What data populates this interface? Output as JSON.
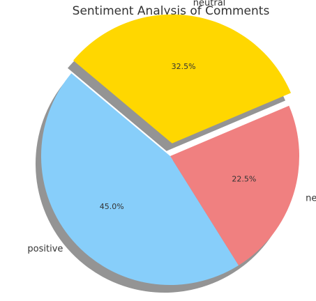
{
  "chart_data": {
    "type": "pie",
    "title": "Sentiment Analysis of Comments",
    "categories": [
      "positive",
      "negative",
      "neutral"
    ],
    "values": [
      45.0,
      22.5,
      32.5
    ],
    "percent_labels": [
      "45.0%",
      "22.5%",
      "32.5%"
    ],
    "colors": [
      "#87CEFA",
      "#F08080",
      "#FFD700"
    ],
    "explode": [
      0,
      0,
      1
    ],
    "shadow": true,
    "start_angle_deg": 140,
    "direction": "counterclockwise"
  }
}
